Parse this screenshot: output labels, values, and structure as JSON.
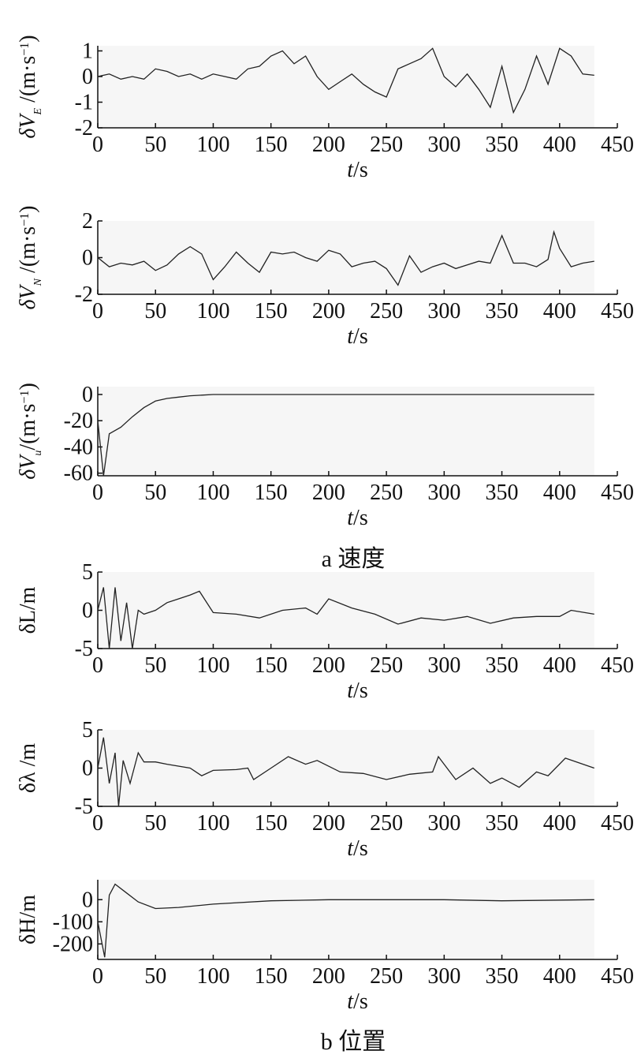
{
  "chart_data": [
    {
      "type": "line",
      "ylabel": [
        "δV",
        "E",
        " /(m·s",
        "−1",
        ")"
      ],
      "xlabel": [
        "t",
        "/s"
      ],
      "color": "#222",
      "x": [
        0,
        10,
        20,
        30,
        40,
        50,
        60,
        70,
        80,
        90,
        100,
        110,
        120,
        130,
        140,
        150,
        160,
        170,
        180,
        190,
        200,
        210,
        220,
        230,
        240,
        250,
        260,
        270,
        280,
        290,
        300,
        310,
        320,
        330,
        340,
        350,
        360,
        370,
        380,
        390,
        400,
        410,
        420,
        430
      ],
      "values": [
        0,
        0.1,
        -0.1,
        0,
        -0.1,
        0.3,
        0.2,
        0,
        0.1,
        -0.1,
        0.1,
        0,
        -0.1,
        0.3,
        0.4,
        0.8,
        1.0,
        0.5,
        0.8,
        0,
        -0.5,
        -0.2,
        0.1,
        -0.3,
        -0.6,
        -0.8,
        0.3,
        0.5,
        0.7,
        1.1,
        0,
        -0.4,
        0.1,
        -0.5,
        -1.2,
        0.4,
        -1.4,
        -0.5,
        0.8,
        -0.3,
        1.1,
        0.8,
        0.1,
        0.05
      ],
      "xlim": [
        0,
        450
      ],
      "ylim": [
        -2,
        1.2
      ],
      "xticks": [
        0,
        50,
        100,
        150,
        200,
        250,
        300,
        350,
        400,
        450
      ],
      "yticks": [
        1,
        0,
        -1,
        -2
      ]
    },
    {
      "type": "line",
      "ylabel": [
        "δV",
        "N",
        " /(m·s",
        "−1",
        ")"
      ],
      "xlabel": [
        "t",
        "/s"
      ],
      "color": "#222",
      "x": [
        0,
        10,
        20,
        30,
        40,
        50,
        60,
        70,
        80,
        90,
        100,
        110,
        120,
        130,
        140,
        150,
        160,
        170,
        180,
        190,
        200,
        210,
        220,
        230,
        240,
        250,
        260,
        270,
        280,
        290,
        300,
        310,
        320,
        330,
        340,
        350,
        360,
        370,
        380,
        390,
        395,
        400,
        410,
        420,
        430
      ],
      "values": [
        0,
        -0.5,
        -0.3,
        -0.4,
        -0.2,
        -0.7,
        -0.4,
        0.2,
        0.6,
        0.2,
        -1.2,
        -0.5,
        0.3,
        -0.3,
        -0.8,
        0.3,
        0.2,
        0.3,
        0,
        -0.2,
        0.4,
        0.2,
        -0.5,
        -0.3,
        -0.2,
        -0.6,
        -1.5,
        0.1,
        -0.8,
        -0.5,
        -0.3,
        -0.6,
        -0.4,
        -0.2,
        -0.3,
        1.2,
        -0.3,
        -0.3,
        -0.5,
        -0.1,
        1.4,
        0.5,
        -0.5,
        -0.3,
        -0.2
      ],
      "xlim": [
        0,
        450
      ],
      "ylim": [
        -2,
        2
      ],
      "xticks": [
        0,
        50,
        100,
        150,
        200,
        250,
        300,
        350,
        400,
        450
      ],
      "yticks": [
        2,
        0,
        -2
      ]
    },
    {
      "type": "line",
      "ylabel": [
        "δV",
        "u",
        "/(m·s",
        "−1",
        ")"
      ],
      "xlabel": [
        "t",
        "/s"
      ],
      "color": "#222",
      "x": [
        0,
        5,
        10,
        20,
        30,
        40,
        50,
        60,
        70,
        80,
        90,
        100,
        150,
        200,
        250,
        300,
        350,
        400,
        430
      ],
      "values": [
        -20,
        -62,
        -30,
        -25,
        -17,
        -10,
        -5,
        -3,
        -2,
        -1,
        -0.5,
        0,
        0,
        0,
        0,
        0,
        0,
        0,
        0
      ],
      "xlim": [
        0,
        450
      ],
      "ylim": [
        -62,
        6
      ],
      "xticks": [
        0,
        50,
        100,
        150,
        200,
        250,
        300,
        350,
        400,
        450
      ],
      "yticks": [
        0,
        -20,
        -40,
        -60
      ]
    },
    {
      "type": "line",
      "ylabel": [
        "δL/m"
      ],
      "xlabel": [
        "t",
        "/s"
      ],
      "color": "#222",
      "x": [
        0,
        5,
        10,
        15,
        20,
        25,
        30,
        35,
        40,
        50,
        60,
        70,
        80,
        88,
        100,
        120,
        140,
        160,
        180,
        190,
        200,
        220,
        240,
        260,
        280,
        300,
        320,
        340,
        360,
        380,
        400,
        410,
        430
      ],
      "values": [
        0,
        3,
        -5,
        3,
        -4,
        1,
        -5,
        0,
        -0.5,
        0,
        1,
        1.5,
        2,
        2.5,
        -0.3,
        -0.5,
        -1,
        0,
        0.3,
        -0.5,
        1.5,
        0.3,
        -0.5,
        -1.8,
        -1,
        -1.3,
        -0.8,
        -1.7,
        -1,
        -0.8,
        -0.8,
        0,
        -0.5
      ],
      "xlim": [
        0,
        450
      ],
      "ylim": [
        -5,
        5
      ],
      "xticks": [
        0,
        50,
        100,
        150,
        200,
        250,
        300,
        350,
        400,
        450
      ],
      "yticks": [
        5,
        0,
        -5
      ]
    },
    {
      "type": "line",
      "ylabel": [
        "δλ /m"
      ],
      "xlabel": [
        "t",
        "/s"
      ],
      "color": "#222",
      "x": [
        0,
        5,
        10,
        15,
        18,
        22,
        28,
        35,
        40,
        50,
        60,
        80,
        90,
        100,
        120,
        130,
        135,
        150,
        165,
        180,
        190,
        210,
        230,
        250,
        270,
        290,
        295,
        300,
        310,
        325,
        340,
        350,
        365,
        380,
        390,
        405,
        430
      ],
      "values": [
        0,
        4,
        -2,
        2,
        -5,
        1,
        -2,
        2,
        0.8,
        0.8,
        0.5,
        0,
        -1,
        -0.3,
        -0.2,
        0,
        -1.5,
        0,
        1.5,
        0.5,
        1,
        -0.5,
        -0.7,
        -1.5,
        -0.8,
        -0.5,
        1.5,
        0.5,
        -1.5,
        0,
        -2,
        -1.3,
        -2.5,
        -0.5,
        -1,
        1.3,
        0
      ],
      "xlim": [
        0,
        450
      ],
      "ylim": [
        -5,
        5
      ],
      "xticks": [
        0,
        50,
        100,
        150,
        200,
        250,
        300,
        350,
        400,
        450
      ],
      "yticks": [
        5,
        0,
        -5
      ]
    },
    {
      "type": "line",
      "ylabel": [
        "δH/m"
      ],
      "xlabel": [
        "t",
        "/s"
      ],
      "color": "#222",
      "x": [
        0,
        6,
        10,
        15,
        25,
        35,
        50,
        70,
        100,
        150,
        200,
        300,
        350,
        430
      ],
      "values": [
        -100,
        -260,
        20,
        70,
        30,
        -10,
        -40,
        -35,
        -20,
        -5,
        0,
        0,
        -5,
        0
      ],
      "xlim": [
        0,
        450
      ],
      "ylim": [
        -270,
        90
      ],
      "xticks": [
        0,
        50,
        100,
        150,
        200,
        250,
        300,
        350,
        400,
        450
      ],
      "yticks": [
        0,
        -100,
        -200
      ]
    }
  ],
  "captions": [
    "a 速度",
    "b 位置"
  ]
}
